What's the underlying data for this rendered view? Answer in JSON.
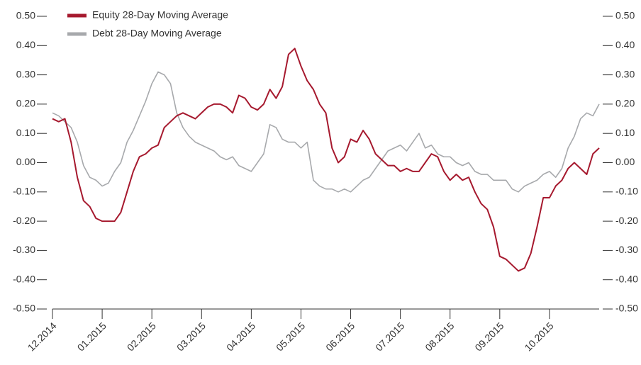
{
  "chart_data": {
    "type": "line",
    "categories": [
      "12.2014",
      null,
      null,
      null,
      null,
      null,
      null,
      null,
      "01.2015",
      null,
      null,
      null,
      null,
      null,
      null,
      null,
      "02.2015",
      null,
      null,
      null,
      null,
      null,
      null,
      null,
      "03.2015",
      null,
      null,
      null,
      null,
      null,
      null,
      null,
      "04.2015",
      null,
      null,
      null,
      null,
      null,
      null,
      null,
      "05.2015",
      null,
      null,
      null,
      null,
      null,
      null,
      null,
      "06.2015",
      null,
      null,
      null,
      null,
      null,
      null,
      null,
      "07.2015",
      null,
      null,
      null,
      null,
      null,
      null,
      null,
      "08.2015",
      null,
      null,
      null,
      null,
      null,
      null,
      null,
      "09.2015",
      null,
      null,
      null,
      null,
      null,
      null,
      null,
      "10.2015",
      null,
      null,
      null,
      null,
      null,
      null,
      null,
      null
    ],
    "series": [
      {
        "name": "Equity 28-Day Moving Average",
        "color": "#a6192e",
        "values": [
          0.15,
          0.14,
          0.15,
          0.07,
          -0.05,
          -0.13,
          -0.15,
          -0.19,
          -0.2,
          -0.2,
          -0.2,
          -0.17,
          -0.1,
          -0.03,
          0.02,
          0.03,
          0.05,
          0.06,
          0.12,
          0.14,
          0.16,
          0.17,
          0.16,
          0.15,
          0.17,
          0.19,
          0.2,
          0.2,
          0.19,
          0.17,
          0.23,
          0.22,
          0.19,
          0.18,
          0.2,
          0.25,
          0.22,
          0.26,
          0.37,
          0.39,
          0.33,
          0.28,
          0.25,
          0.2,
          0.17,
          0.05,
          0.0,
          0.02,
          0.08,
          0.07,
          0.11,
          0.08,
          0.03,
          0.01,
          -0.01,
          -0.01,
          -0.03,
          -0.02,
          -0.03,
          -0.03,
          0.0,
          0.03,
          0.02,
          -0.03,
          -0.06,
          -0.04,
          -0.06,
          -0.05,
          -0.1,
          -0.14,
          -0.16,
          -0.22,
          -0.32,
          -0.33,
          -0.35,
          -0.37,
          -0.36,
          -0.31,
          -0.22,
          -0.12,
          -0.12,
          -0.08,
          -0.06,
          -0.02,
          0.0,
          -0.02,
          -0.04,
          0.03,
          0.05
        ]
      },
      {
        "name": "Debt 28-Day Moving Average",
        "color": "#a7a9ac",
        "values": [
          0.17,
          0.16,
          0.14,
          0.12,
          0.07,
          -0.01,
          -0.05,
          -0.06,
          -0.08,
          -0.07,
          -0.03,
          0.0,
          0.07,
          0.11,
          0.16,
          0.21,
          0.27,
          0.31,
          0.3,
          0.27,
          0.17,
          0.12,
          0.09,
          0.07,
          0.06,
          0.05,
          0.04,
          0.02,
          0.01,
          0.02,
          -0.01,
          -0.02,
          -0.03,
          0.0,
          0.03,
          0.13,
          0.12,
          0.08,
          0.07,
          0.07,
          0.05,
          0.07,
          -0.06,
          -0.08,
          -0.09,
          -0.09,
          -0.1,
          -0.09,
          -0.1,
          -0.08,
          -0.06,
          -0.05,
          -0.02,
          0.01,
          0.04,
          0.05,
          0.06,
          0.04,
          0.07,
          0.1,
          0.05,
          0.06,
          0.03,
          0.02,
          0.02,
          0.0,
          -0.01,
          0.0,
          -0.03,
          -0.04,
          -0.04,
          -0.06,
          -0.06,
          -0.06,
          -0.09,
          -0.1,
          -0.08,
          -0.07,
          -0.06,
          -0.04,
          -0.03,
          -0.05,
          -0.02,
          0.05,
          0.09,
          0.15,
          0.17,
          0.16,
          0.2
        ]
      }
    ],
    "ylim": [
      -0.5,
      0.5
    ],
    "yticks": [
      {
        "value": -0.5,
        "label": "-0.50"
      },
      {
        "value": -0.4,
        "label": "-0.40"
      },
      {
        "value": -0.3,
        "label": "-0.30"
      },
      {
        "value": -0.2,
        "label": "-0.20"
      },
      {
        "value": -0.1,
        "label": "-0.10"
      },
      {
        "value": 0,
        "label": "0.00"
      },
      {
        "value": 0.1,
        "label": "0.10"
      },
      {
        "value": 0.2,
        "label": "0.20"
      },
      {
        "value": 0.3,
        "label": "0.30"
      },
      {
        "value": 0.4,
        "label": "0.40"
      },
      {
        "value": 0.5,
        "label": "0.50"
      }
    ],
    "y2lim": [
      -0.5,
      0.5
    ],
    "y2ticks": [
      {
        "value": -0.5,
        "label": "-0.50"
      },
      {
        "value": -0.4,
        "label": "-0.40"
      },
      {
        "value": -0.3,
        "label": "-0.30"
      },
      {
        "value": -0.2,
        "label": "-0.20"
      },
      {
        "value": -0.1,
        "label": "-0.10"
      },
      {
        "value": 0,
        "label": "0.00"
      },
      {
        "value": 0.1,
        "label": "0.10"
      },
      {
        "value": 0.2,
        "label": "0.20"
      },
      {
        "value": 0.3,
        "label": "0.30"
      },
      {
        "value": 0.4,
        "label": "0.40"
      },
      {
        "value": 0.5,
        "label": "0.50"
      }
    ],
    "legend": "top-left",
    "grid": false
  }
}
